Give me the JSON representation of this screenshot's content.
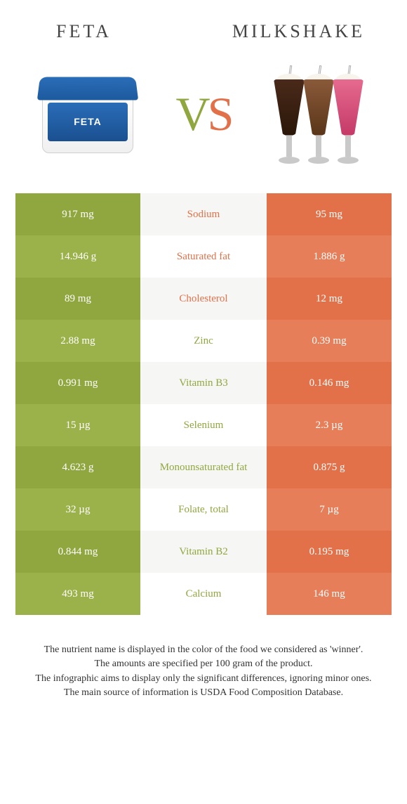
{
  "header": {
    "left": "FETA",
    "right": "MILKSHAKE",
    "vs_left": "V",
    "vs_right": "S",
    "feta_label": "FETA"
  },
  "colors": {
    "left": "#8fa73e",
    "left_alt": "#9bb24a",
    "right": "#e2714a",
    "right_alt": "#e67e59",
    "mid": "#f6f6f4",
    "mid_alt": "#ffffff",
    "text_on_left": "#ffffff",
    "text_on_right": "#ffffff"
  },
  "table": {
    "rows": [
      {
        "left": "917 mg",
        "label": "Sodium",
        "right": "95 mg",
        "winner": "right"
      },
      {
        "left": "14.946 g",
        "label": "Saturated fat",
        "right": "1.886 g",
        "winner": "right"
      },
      {
        "left": "89 mg",
        "label": "Cholesterol",
        "right": "12 mg",
        "winner": "right"
      },
      {
        "left": "2.88 mg",
        "label": "Zinc",
        "right": "0.39 mg",
        "winner": "left"
      },
      {
        "left": "0.991 mg",
        "label": "Vitamin B3",
        "right": "0.146 mg",
        "winner": "left"
      },
      {
        "left": "15 µg",
        "label": "Selenium",
        "right": "2.3 µg",
        "winner": "left"
      },
      {
        "left": "4.623 g",
        "label": "Monounsaturated fat",
        "right": "0.875 g",
        "winner": "left"
      },
      {
        "left": "32 µg",
        "label": "Folate, total",
        "right": "7 µg",
        "winner": "left"
      },
      {
        "left": "0.844 mg",
        "label": "Vitamin B2",
        "right": "0.195 mg",
        "winner": "left"
      },
      {
        "left": "493 mg",
        "label": "Calcium",
        "right": "146 mg",
        "winner": "left"
      }
    ]
  },
  "footnotes": [
    "The nutrient name is displayed in the color of the food we considered as 'winner'.",
    "The amounts are specified per 100 gram of the product.",
    "The infographic aims to display only the significant differences, ignoring minor ones.",
    "The main source of information is USDA Food Composition Database."
  ]
}
